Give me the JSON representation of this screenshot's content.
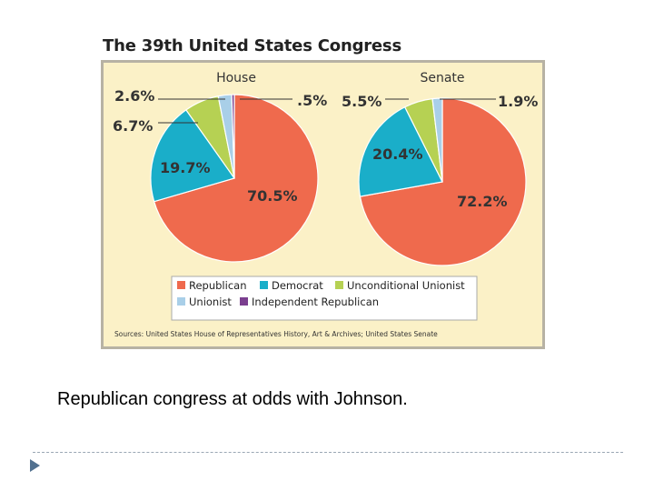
{
  "slide": {
    "caption": "Republican congress at odds with Johnson."
  },
  "chart_title": "The 39th United States Congress",
  "source": "Sources: United States House of Representatives History, Art & Archives; United States Senate",
  "colors": {
    "Republican": "#ef6a4d",
    "Democrat": "#1aaec9",
    "Unconditional Unionist": "#b6d153",
    "Unionist": "#a9cfe8",
    "Independent Republican": "#7b3f8f",
    "panel": "#fbf1c7",
    "frame": "#b7b2a4"
  },
  "legend": {
    "placement": "bottom-center",
    "items": [
      "Republican",
      "Democrat",
      "Unconditional Unionist",
      "Unionist",
      "Independent Republican"
    ]
  },
  "chart_data": [
    {
      "type": "pie",
      "title": "House",
      "slices": [
        {
          "name": "Republican",
          "value": 70.5,
          "label": "70.5%"
        },
        {
          "name": "Democrat",
          "value": 19.7,
          "label": "19.7%"
        },
        {
          "name": "Unconditional Unionist",
          "value": 6.7,
          "label": "6.7%"
        },
        {
          "name": "Unionist",
          "value": 2.6,
          "label": "2.6%"
        },
        {
          "name": "Independent Republican",
          "value": 0.5,
          "label": ".5%"
        }
      ]
    },
    {
      "type": "pie",
      "title": "Senate",
      "slices": [
        {
          "name": "Republican",
          "value": 72.2,
          "label": "72.2%"
        },
        {
          "name": "Democrat",
          "value": 20.4,
          "label": "20.4%"
        },
        {
          "name": "Unconditional Unionist",
          "value": 5.5,
          "label": "5.5%"
        },
        {
          "name": "Unionist",
          "value": 1.9,
          "label": "1.9%"
        }
      ]
    }
  ]
}
